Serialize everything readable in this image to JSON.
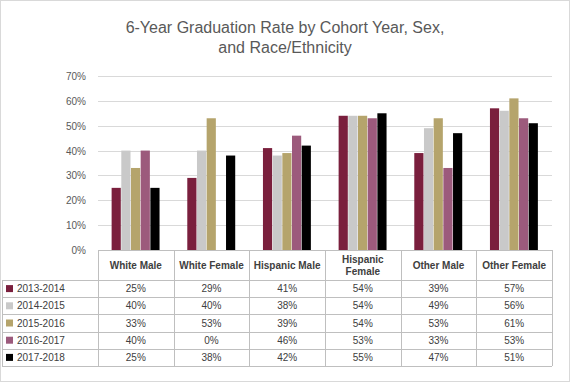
{
  "chart_data": {
    "type": "bar",
    "title": "6-Year Graduation Rate by Cohort Year, Sex, and Race/Ethnicity",
    "categories": [
      "White Male",
      "White Female",
      "Hispanic Male",
      "Hispanic Female",
      "Other Male",
      "Other Female"
    ],
    "series": [
      {
        "name": "2013-2014",
        "color": "#7a1f3d",
        "values": [
          25,
          29,
          41,
          54,
          39,
          57
        ],
        "value_labels": [
          "25%",
          "29%",
          "41%",
          "54%",
          "39%",
          "57%"
        ]
      },
      {
        "name": "2014-2015",
        "color": "#c9c9c9",
        "values": [
          40,
          40,
          38,
          54,
          49,
          56
        ],
        "value_labels": [
          "40%",
          "40%",
          "38%",
          "54%",
          "49%",
          "56%"
        ]
      },
      {
        "name": "2015-2016",
        "color": "#b5a46c",
        "values": [
          33,
          53,
          39,
          54,
          53,
          61
        ],
        "value_labels": [
          "33%",
          "53%",
          "39%",
          "54%",
          "53%",
          "61%"
        ]
      },
      {
        "name": "2016-2017",
        "color": "#9c5a7c",
        "values": [
          40,
          0,
          46,
          53,
          33,
          53
        ],
        "value_labels": [
          "40%",
          "0%",
          "46%",
          "53%",
          "33%",
          "53%"
        ]
      },
      {
        "name": "2017-2018",
        "color": "#000000",
        "values": [
          25,
          38,
          42,
          55,
          47,
          51
        ],
        "value_labels": [
          "25%",
          "38%",
          "42%",
          "55%",
          "47%",
          "51%"
        ]
      }
    ],
    "ylim": [
      0,
      70
    ],
    "yticks": [
      {
        "value": 0,
        "label": "0%"
      },
      {
        "value": 10,
        "label": "10%"
      },
      {
        "value": 20,
        "label": "20%"
      },
      {
        "value": 30,
        "label": "30%"
      },
      {
        "value": 40,
        "label": "40%"
      },
      {
        "value": 50,
        "label": "50%"
      },
      {
        "value": 60,
        "label": "60%"
      },
      {
        "value": 70,
        "label": "70%"
      }
    ],
    "grid": true
  }
}
